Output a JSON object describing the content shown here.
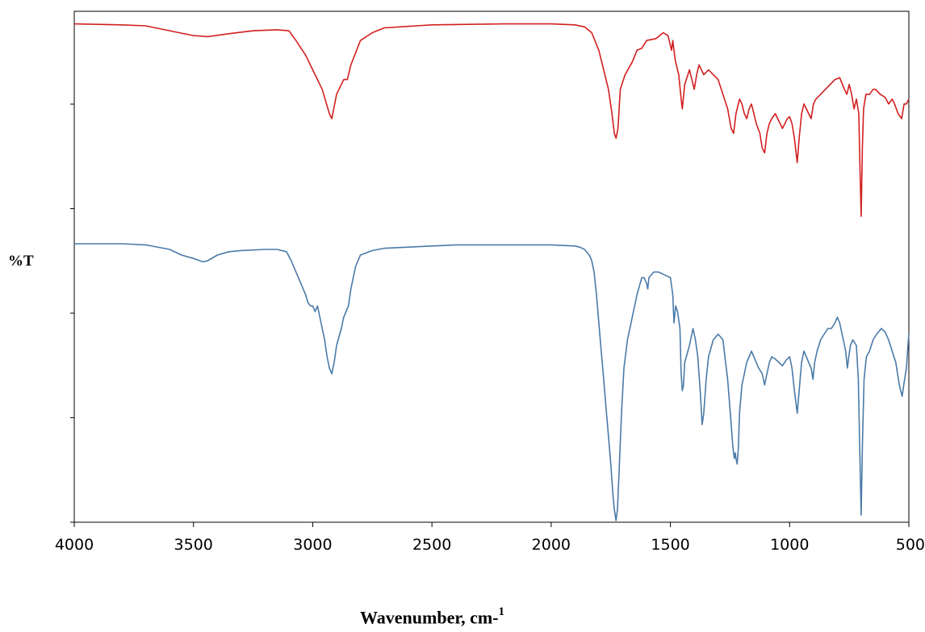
{
  "chart_data": {
    "type": "line",
    "xlabel": "Wavenumber, cm-",
    "xlabel_sup": "1",
    "ylabel": "%T",
    "xlim": [
      4000,
      500
    ],
    "x_reversed": true,
    "x_ticks": [
      "4000",
      "3500",
      "3000",
      "2500",
      "2000",
      "1500",
      "1000",
      "500"
    ],
    "y_ticks_count": 5,
    "grid": false,
    "legend": "none",
    "series": [
      {
        "color": "#d21f1f",
        "offset_units": "upper trace",
        "points": [
          [
            4000,
            0.03
          ],
          [
            3900,
            0.035
          ],
          [
            3800,
            0.04
          ],
          [
            3700,
            0.05
          ],
          [
            3600,
            0.1
          ],
          [
            3500,
            0.15
          ],
          [
            3440,
            0.16
          ],
          [
            3350,
            0.13
          ],
          [
            3250,
            0.1
          ],
          [
            3150,
            0.09
          ],
          [
            3100,
            0.1
          ],
          [
            3070,
            0.2
          ],
          [
            3030,
            0.35
          ],
          [
            3000,
            0.5
          ],
          [
            2980,
            0.6
          ],
          [
            2960,
            0.7
          ],
          [
            2930,
            0.95
          ],
          [
            2920,
            1.0
          ],
          [
            2900,
            0.75
          ],
          [
            2870,
            0.6
          ],
          [
            2855,
            0.6
          ],
          [
            2840,
            0.45
          ],
          [
            2800,
            0.2
          ],
          [
            2750,
            0.12
          ],
          [
            2700,
            0.07
          ],
          [
            2500,
            0.04
          ],
          [
            2200,
            0.03
          ],
          [
            2000,
            0.03
          ],
          [
            1900,
            0.04
          ],
          [
            1860,
            0.06
          ],
          [
            1830,
            0.12
          ],
          [
            1800,
            0.3
          ],
          [
            1780,
            0.5
          ],
          [
            1760,
            0.7
          ],
          [
            1745,
            0.95
          ],
          [
            1735,
            1.15
          ],
          [
            1728,
            1.2
          ],
          [
            1720,
            1.1
          ],
          [
            1710,
            0.7
          ],
          [
            1690,
            0.55
          ],
          [
            1660,
            0.42
          ],
          [
            1640,
            0.3
          ],
          [
            1620,
            0.28
          ],
          [
            1600,
            0.2
          ],
          [
            1560,
            0.18
          ],
          [
            1530,
            0.12
          ],
          [
            1510,
            0.15
          ],
          [
            1495,
            0.3
          ],
          [
            1490,
            0.2
          ],
          [
            1480,
            0.4
          ],
          [
            1465,
            0.55
          ],
          [
            1455,
            0.8
          ],
          [
            1450,
            0.9
          ],
          [
            1440,
            0.65
          ],
          [
            1420,
            0.5
          ],
          [
            1410,
            0.6
          ],
          [
            1400,
            0.7
          ],
          [
            1390,
            0.55
          ],
          [
            1380,
            0.45
          ],
          [
            1370,
            0.5
          ],
          [
            1360,
            0.55
          ],
          [
            1340,
            0.5
          ],
          [
            1320,
            0.55
          ],
          [
            1300,
            0.6
          ],
          [
            1280,
            0.75
          ],
          [
            1260,
            0.9
          ],
          [
            1245,
            1.1
          ],
          [
            1235,
            1.15
          ],
          [
            1225,
            0.95
          ],
          [
            1210,
            0.8
          ],
          [
            1200,
            0.85
          ],
          [
            1190,
            0.95
          ],
          [
            1180,
            1.0
          ],
          [
            1170,
            0.9
          ],
          [
            1160,
            0.85
          ],
          [
            1150,
            0.95
          ],
          [
            1140,
            1.05
          ],
          [
            1125,
            1.15
          ],
          [
            1115,
            1.3
          ],
          [
            1105,
            1.35
          ],
          [
            1095,
            1.15
          ],
          [
            1085,
            1.05
          ],
          [
            1075,
            1.0
          ],
          [
            1060,
            0.95
          ],
          [
            1050,
            1.0
          ],
          [
            1040,
            1.05
          ],
          [
            1030,
            1.1
          ],
          [
            1020,
            1.05
          ],
          [
            1010,
            1.0
          ],
          [
            1000,
            0.98
          ],
          [
            990,
            1.05
          ],
          [
            980,
            1.2
          ],
          [
            968,
            1.45
          ],
          [
            960,
            1.2
          ],
          [
            950,
            0.95
          ],
          [
            940,
            0.85
          ],
          [
            930,
            0.9
          ],
          [
            920,
            0.95
          ],
          [
            910,
            1.0
          ],
          [
            900,
            0.85
          ],
          [
            890,
            0.8
          ],
          [
            870,
            0.75
          ],
          [
            850,
            0.7
          ],
          [
            830,
            0.65
          ],
          [
            810,
            0.6
          ],
          [
            790,
            0.58
          ],
          [
            770,
            0.7
          ],
          [
            760,
            0.75
          ],
          [
            750,
            0.65
          ],
          [
            740,
            0.75
          ],
          [
            730,
            0.9
          ],
          [
            720,
            0.8
          ],
          [
            710,
            0.95
          ],
          [
            705,
            1.5
          ],
          [
            700,
            2.0
          ],
          [
            695,
            1.3
          ],
          [
            690,
            0.9
          ],
          [
            680,
            0.75
          ],
          [
            665,
            0.75
          ],
          [
            650,
            0.7
          ],
          [
            640,
            0.7
          ],
          [
            620,
            0.75
          ],
          [
            600,
            0.78
          ],
          [
            585,
            0.85
          ],
          [
            570,
            0.8
          ],
          [
            560,
            0.85
          ],
          [
            545,
            0.95
          ],
          [
            530,
            1.0
          ],
          [
            520,
            0.85
          ],
          [
            510,
            0.85
          ],
          [
            500,
            0.8
          ]
        ]
      },
      {
        "color": "#4a7aa8",
        "offset_units": "lower trace",
        "points": [
          [
            4000,
            0.0
          ],
          [
            3800,
            0.0
          ],
          [
            3700,
            0.01
          ],
          [
            3600,
            0.05
          ],
          [
            3550,
            0.1
          ],
          [
            3500,
            0.13
          ],
          [
            3460,
            0.16
          ],
          [
            3440,
            0.15
          ],
          [
            3400,
            0.1
          ],
          [
            3350,
            0.07
          ],
          [
            3300,
            0.06
          ],
          [
            3200,
            0.05
          ],
          [
            3150,
            0.05
          ],
          [
            3110,
            0.07
          ],
          [
            3090,
            0.15
          ],
          [
            3070,
            0.25
          ],
          [
            3050,
            0.35
          ],
          [
            3040,
            0.4
          ],
          [
            3030,
            0.45
          ],
          [
            3020,
            0.52
          ],
          [
            3010,
            0.55
          ],
          [
            3000,
            0.55
          ],
          [
            2990,
            0.6
          ],
          [
            2980,
            0.55
          ],
          [
            2970,
            0.65
          ],
          [
            2960,
            0.75
          ],
          [
            2950,
            0.85
          ],
          [
            2940,
            1.0
          ],
          [
            2930,
            1.1
          ],
          [
            2920,
            1.15
          ],
          [
            2910,
            1.05
          ],
          [
            2900,
            0.9
          ],
          [
            2880,
            0.75
          ],
          [
            2870,
            0.65
          ],
          [
            2860,
            0.6
          ],
          [
            2850,
            0.55
          ],
          [
            2840,
            0.4
          ],
          [
            2820,
            0.2
          ],
          [
            2800,
            0.1
          ],
          [
            2750,
            0.06
          ],
          [
            2700,
            0.04
          ],
          [
            2600,
            0.03
          ],
          [
            2500,
            0.02
          ],
          [
            2400,
            0.01
          ],
          [
            2200,
            0.01
          ],
          [
            2000,
            0.01
          ],
          [
            1900,
            0.02
          ],
          [
            1880,
            0.03
          ],
          [
            1860,
            0.05
          ],
          [
            1840,
            0.1
          ],
          [
            1830,
            0.15
          ],
          [
            1820,
            0.25
          ],
          [
            1810,
            0.45
          ],
          [
            1800,
            0.7
          ],
          [
            1790,
            0.95
          ],
          [
            1780,
            1.2
          ],
          [
            1770,
            1.45
          ],
          [
            1760,
            1.7
          ],
          [
            1750,
            1.95
          ],
          [
            1745,
            2.1
          ],
          [
            1740,
            2.25
          ],
          [
            1735,
            2.35
          ],
          [
            1728,
            2.45
          ],
          [
            1722,
            2.35
          ],
          [
            1715,
            2.0
          ],
          [
            1705,
            1.5
          ],
          [
            1695,
            1.1
          ],
          [
            1680,
            0.85
          ],
          [
            1660,
            0.65
          ],
          [
            1640,
            0.45
          ],
          [
            1620,
            0.3
          ],
          [
            1610,
            0.3
          ],
          [
            1600,
            0.35
          ],
          [
            1595,
            0.4
          ],
          [
            1590,
            0.3
          ],
          [
            1570,
            0.25
          ],
          [
            1550,
            0.25
          ],
          [
            1520,
            0.28
          ],
          [
            1500,
            0.3
          ],
          [
            1490,
            0.45
          ],
          [
            1485,
            0.7
          ],
          [
            1478,
            0.55
          ],
          [
            1470,
            0.6
          ],
          [
            1460,
            0.75
          ],
          [
            1455,
            1.15
          ],
          [
            1450,
            1.3
          ],
          [
            1445,
            1.25
          ],
          [
            1440,
            1.05
          ],
          [
            1420,
            0.9
          ],
          [
            1405,
            0.75
          ],
          [
            1395,
            0.85
          ],
          [
            1385,
            1.0
          ],
          [
            1375,
            1.3
          ],
          [
            1367,
            1.6
          ],
          [
            1360,
            1.5
          ],
          [
            1350,
            1.2
          ],
          [
            1340,
            1.0
          ],
          [
            1320,
            0.85
          ],
          [
            1300,
            0.8
          ],
          [
            1280,
            0.85
          ],
          [
            1260,
            1.2
          ],
          [
            1245,
            1.6
          ],
          [
            1238,
            1.8
          ],
          [
            1232,
            1.9
          ],
          [
            1228,
            1.85
          ],
          [
            1225,
            1.9
          ],
          [
            1220,
            1.95
          ],
          [
            1215,
            1.8
          ],
          [
            1210,
            1.5
          ],
          [
            1200,
            1.25
          ],
          [
            1190,
            1.15
          ],
          [
            1180,
            1.05
          ],
          [
            1170,
            1.0
          ],
          [
            1160,
            0.95
          ],
          [
            1150,
            1.0
          ],
          [
            1140,
            1.05
          ],
          [
            1130,
            1.1
          ],
          [
            1115,
            1.15
          ],
          [
            1105,
            1.25
          ],
          [
            1095,
            1.15
          ],
          [
            1085,
            1.05
          ],
          [
            1075,
            1.0
          ],
          [
            1060,
            1.02
          ],
          [
            1045,
            1.05
          ],
          [
            1030,
            1.08
          ],
          [
            1015,
            1.03
          ],
          [
            1000,
            1.0
          ],
          [
            990,
            1.1
          ],
          [
            980,
            1.3
          ],
          [
            968,
            1.5
          ],
          [
            960,
            1.3
          ],
          [
            950,
            1.05
          ],
          [
            940,
            0.95
          ],
          [
            930,
            1.0
          ],
          [
            920,
            1.05
          ],
          [
            910,
            1.1
          ],
          [
            902,
            1.2
          ],
          [
            895,
            1.05
          ],
          [
            885,
            0.95
          ],
          [
            870,
            0.85
          ],
          [
            855,
            0.8
          ],
          [
            840,
            0.75
          ],
          [
            825,
            0.75
          ],
          [
            810,
            0.7
          ],
          [
            800,
            0.65
          ],
          [
            790,
            0.7
          ],
          [
            775,
            0.85
          ],
          [
            765,
            0.95
          ],
          [
            758,
            1.1
          ],
          [
            752,
            1.0
          ],
          [
            745,
            0.9
          ],
          [
            735,
            0.85
          ],
          [
            720,
            0.9
          ],
          [
            712,
            1.2
          ],
          [
            706,
            1.8
          ],
          [
            700,
            2.4
          ],
          [
            695,
            1.8
          ],
          [
            688,
            1.2
          ],
          [
            678,
            1.0
          ],
          [
            665,
            0.95
          ],
          [
            650,
            0.85
          ],
          [
            635,
            0.8
          ],
          [
            615,
            0.75
          ],
          [
            600,
            0.78
          ],
          [
            585,
            0.85
          ],
          [
            570,
            0.95
          ],
          [
            555,
            1.05
          ],
          [
            540,
            1.25
          ],
          [
            528,
            1.35
          ],
          [
            518,
            1.2
          ],
          [
            510,
            1.1
          ],
          [
            502,
            0.85
          ],
          [
            500,
            0.8
          ]
        ]
      }
    ]
  }
}
